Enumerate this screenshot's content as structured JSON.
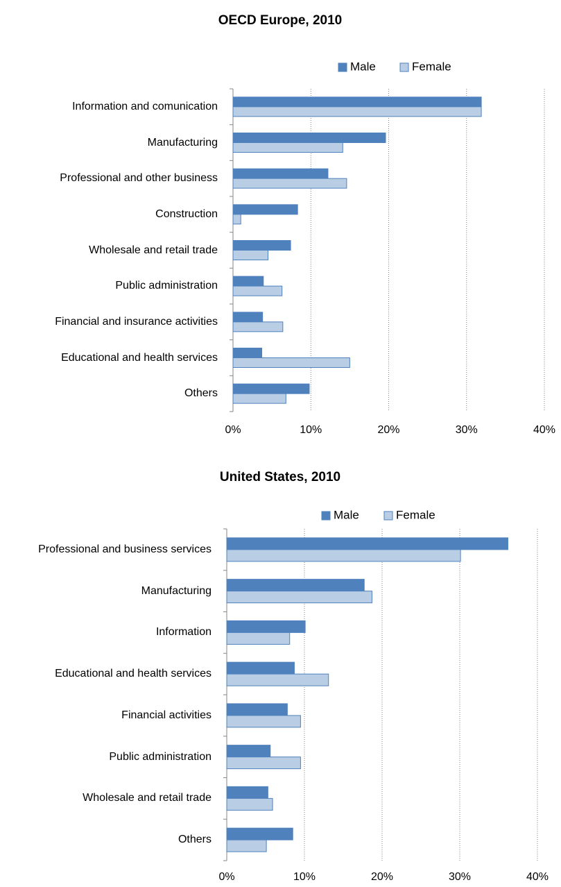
{
  "chart_data": [
    {
      "type": "bar",
      "title": "OECD Europe, 2010",
      "categories": [
        "Information and comunication",
        "Manufacturing",
        "Professional and other business",
        "Construction",
        "Wholesale and retail trade",
        "Public administration",
        "Financial and insurance activities",
        "Educational and health services",
        "Others"
      ],
      "series": [
        {
          "name": "Male",
          "color": "#4f81bd",
          "values": [
            31.9,
            19.6,
            12.2,
            8.3,
            7.4,
            3.9,
            3.8,
            3.7,
            9.8
          ]
        },
        {
          "name": "Female",
          "color": "#b9cde5",
          "edgecolor": "#4f81bd",
          "values": [
            31.9,
            14.1,
            14.6,
            1.0,
            4.5,
            6.3,
            6.4,
            15.0,
            6.8
          ]
        }
      ],
      "xlim": [
        0,
        40
      ],
      "xticks": [
        {
          "value": 0,
          "label": "0%"
        },
        {
          "value": 10,
          "label": "10%"
        },
        {
          "value": 20,
          "label": "20%"
        },
        {
          "value": 30,
          "label": "30%"
        },
        {
          "value": 40,
          "label": "40%"
        }
      ],
      "grid": true,
      "legend": "top right"
    },
    {
      "type": "bar",
      "title": "United States, 2010",
      "categories": [
        "Professional and business services",
        "Manufacturing",
        "Information",
        "Educational and health services",
        "Financial activities",
        "Public administration",
        "Wholesale and retail trade",
        "Others"
      ],
      "series": [
        {
          "name": "Male",
          "color": "#4f81bd",
          "values": [
            36.2,
            17.7,
            10.1,
            8.7,
            7.8,
            5.6,
            5.3,
            8.5
          ]
        },
        {
          "name": "Female",
          "color": "#b9cde5",
          "edgecolor": "#4f81bd",
          "values": [
            30.1,
            18.7,
            8.1,
            13.1,
            9.5,
            9.5,
            5.9,
            5.1
          ]
        }
      ],
      "xlim": [
        0,
        40
      ],
      "xticks": [
        {
          "value": 0,
          "label": "0%"
        },
        {
          "value": 10,
          "label": "10%"
        },
        {
          "value": 20,
          "label": "20%"
        },
        {
          "value": 30,
          "label": "30%"
        },
        {
          "value": 40,
          "label": "40%"
        }
      ],
      "grid": true,
      "legend": "top right"
    }
  ]
}
